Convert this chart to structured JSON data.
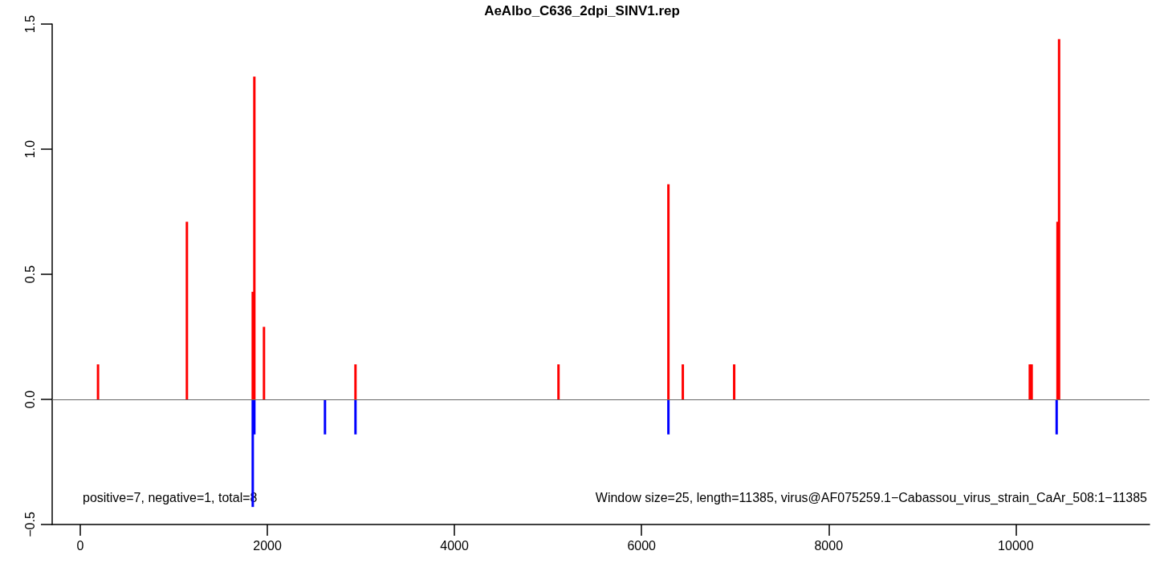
{
  "chart_data": {
    "type": "bar",
    "title": "AeAlbo_C636_2dpi_SINV1.rep",
    "xlim": [
      -300,
      11430
    ],
    "xticks": [
      0,
      2000,
      4000,
      6000,
      8000,
      10000
    ],
    "ylim": [
      -0.5,
      1.5
    ],
    "yticks": [
      {
        "value": -0.5,
        "label": "−0.5"
      },
      {
        "value": 0,
        "label": "0.0"
      },
      0.5,
      {
        "value": 1,
        "label": "1.0"
      },
      1.5
    ],
    "series": [
      {
        "color": "#ff0000",
        "x": [
          190,
          1140,
          1844,
          1861,
          1964,
          2942,
          5112,
          6287,
          6441,
          6990,
          10150,
          10170,
          10446,
          10463
        ],
        "values": [
          0.14,
          0.71,
          0.43,
          1.29,
          0.29,
          0.14,
          0.14,
          0.86,
          0.14,
          0.14,
          0.14,
          0.14,
          0.71,
          1.44
        ]
      },
      {
        "color": "#0000ff",
        "x": [
          1844,
          1861,
          2616,
          2942,
          6287,
          10437
        ],
        "values": [
          -0.43,
          -0.14,
          -0.14,
          -0.14,
          -0.14,
          -0.14
        ]
      }
    ],
    "ref_lines": [
      {
        "axis": "y",
        "value": 0,
        "color": "#666666"
      }
    ],
    "annotations": [
      "positive=7, negative=1, total=8",
      "Window size=25, length=11385, virus@AF075259.1−Cabassou_virus_strain_CaAr_508:1−11385"
    ]
  }
}
